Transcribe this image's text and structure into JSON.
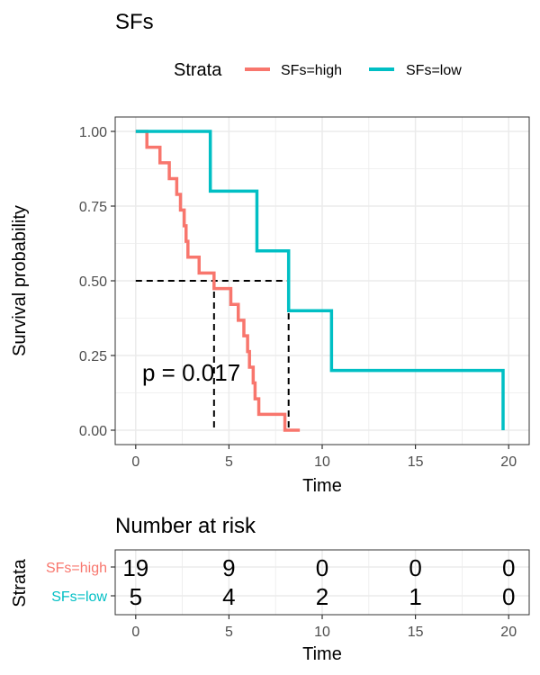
{
  "colors": {
    "high": "#F8766D",
    "low": "#00BFC4",
    "grid": "#ebebeb",
    "border": "#333333"
  },
  "legend": {
    "title": "Strata",
    "items": [
      {
        "label": "SFs=high",
        "color": "#F8766D"
      },
      {
        "label": "SFs=low",
        "color": "#00BFC4"
      }
    ]
  },
  "chart_data": [
    {
      "type": "line",
      "title": "SFs",
      "xlabel": "Time",
      "ylabel": "Survival probability",
      "xlim": [
        0,
        20
      ],
      "ylim": [
        0,
        1
      ],
      "x_ticks": [
        0,
        5,
        10,
        15,
        20
      ],
      "x_tick_labels": [
        "0",
        "5",
        "10",
        "15",
        "20"
      ],
      "y_ticks": [
        0,
        0.25,
        0.5,
        0.75,
        1
      ],
      "y_tick_labels": [
        "0.00",
        "0.25",
        "0.50",
        "0.75",
        "1.00"
      ],
      "grid": true,
      "legend_position": "top",
      "annotation": "p = 0.017",
      "median_lines": [
        {
          "x": 4.2,
          "y": 0.5
        },
        {
          "x": 8.2,
          "y": 0.5
        }
      ],
      "series": [
        {
          "name": "SFs=high",
          "color": "#F8766D",
          "step_x": [
            0,
            0.6,
            1.3,
            1.8,
            2.2,
            2.4,
            2.6,
            2.7,
            2.8,
            3.4,
            4.2,
            5.1,
            5.5,
            5.8,
            6.0,
            6.1,
            6.3,
            6.4,
            6.6,
            7.1,
            8.0,
            8.8
          ],
          "step_y": [
            1.0,
            0.947,
            0.895,
            0.842,
            0.789,
            0.737,
            0.684,
            0.632,
            0.579,
            0.526,
            0.474,
            0.421,
            0.368,
            0.316,
            0.263,
            0.211,
            0.158,
            0.105,
            0.053,
            0.053,
            0.0,
            0.0
          ]
        },
        {
          "name": "SFs=low",
          "color": "#00BFC4",
          "step_x": [
            0,
            4.0,
            6.5,
            8.2,
            10.5,
            19.7
          ],
          "step_y": [
            1.0,
            0.8,
            0.6,
            0.4,
            0.2,
            0.0
          ]
        }
      ]
    },
    {
      "type": "table",
      "title": "Number at risk",
      "xlabel": "Time",
      "ylabel": "Strata",
      "x_ticks": [
        0,
        5,
        10,
        15,
        20
      ],
      "x_tick_labels": [
        "0",
        "5",
        "10",
        "15",
        "20"
      ],
      "rows": [
        {
          "label": "SFs=high",
          "color": "#F8766D",
          "values": [
            19,
            9,
            0,
            0,
            0
          ]
        },
        {
          "label": "SFs=low",
          "color": "#00BFC4",
          "values": [
            5,
            4,
            2,
            1,
            0
          ]
        }
      ]
    }
  ]
}
